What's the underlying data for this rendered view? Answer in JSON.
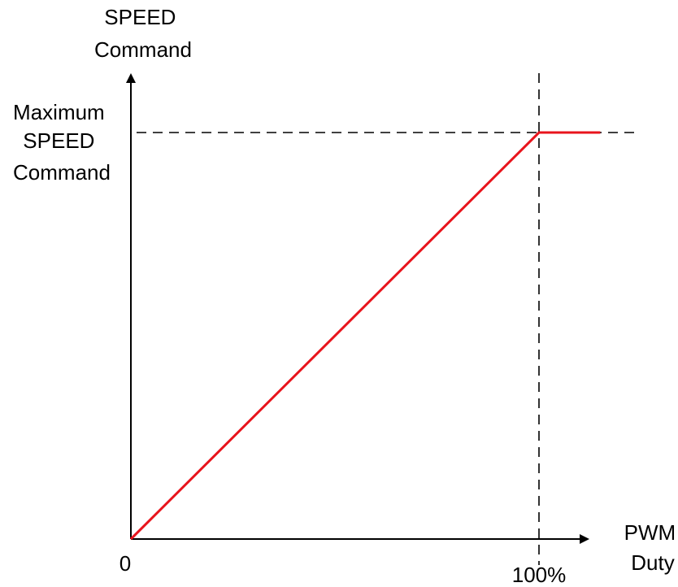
{
  "chart_data": {
    "type": "line",
    "title": "",
    "ylabel": [
      "SPEED",
      "Command"
    ],
    "xlabel": [
      "PWM",
      "Duty"
    ],
    "y_max_label": [
      "Maximum",
      "SPEED",
      "Command"
    ],
    "origin_label": "0",
    "x_tick_label": "100%",
    "xlim": [
      0,
      115
    ],
    "ylim": [
      0,
      100
    ],
    "grid": false,
    "legend": "none",
    "series": [
      {
        "x": [
          0,
          100,
          115
        ],
        "y": [
          0,
          100,
          100
        ],
        "color": "#e8141c"
      }
    ],
    "reference_lines": {
      "vertical_x": 100,
      "horizontal_y": 100
    },
    "colors": {
      "axis": "#000000",
      "line": "#e8141c",
      "reference": "#000000"
    }
  }
}
